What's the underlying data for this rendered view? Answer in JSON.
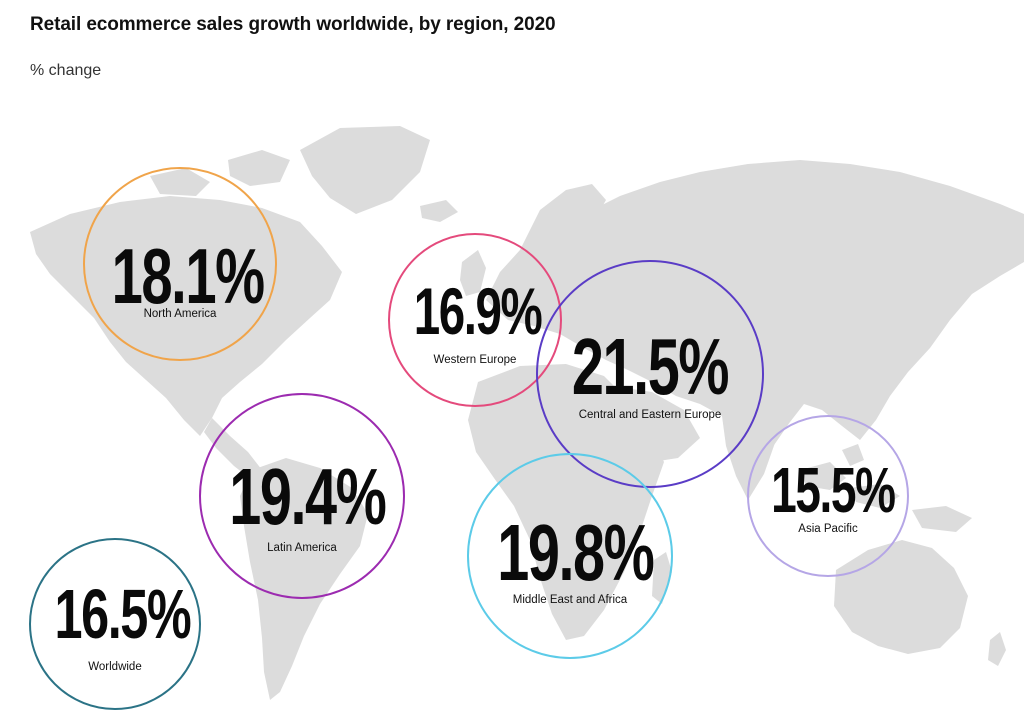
{
  "header": {
    "title": "Retail ecommerce sales growth worldwide, by region, 2020",
    "subtitle": "% change"
  },
  "colors": {
    "map_land": "#dcdcdc",
    "north_america": "#f0a44a",
    "western_europe": "#e44a7c",
    "central_eastern_europe": "#5a3cc6",
    "latin_america": "#9c2bb0",
    "middle_east_africa": "#5ccbe8",
    "asia_pacific": "#b5a6e6",
    "worldwide": "#2b7386"
  },
  "chart_data": {
    "type": "bubble-map",
    "title": "Retail ecommerce sales growth worldwide, by region, 2020",
    "unit": "% change",
    "categories": [
      "North America",
      "Western Europe",
      "Central and Eastern Europe",
      "Latin America",
      "Middle East and Africa",
      "Asia Pacific",
      "Worldwide"
    ],
    "values": [
      18.1,
      16.9,
      21.5,
      19.4,
      19.8,
      15.5,
      16.5
    ],
    "labels": [
      "18.1%",
      "16.9%",
      "21.5%",
      "19.4%",
      "19.8%",
      "15.5%",
      "16.5%"
    ]
  }
}
